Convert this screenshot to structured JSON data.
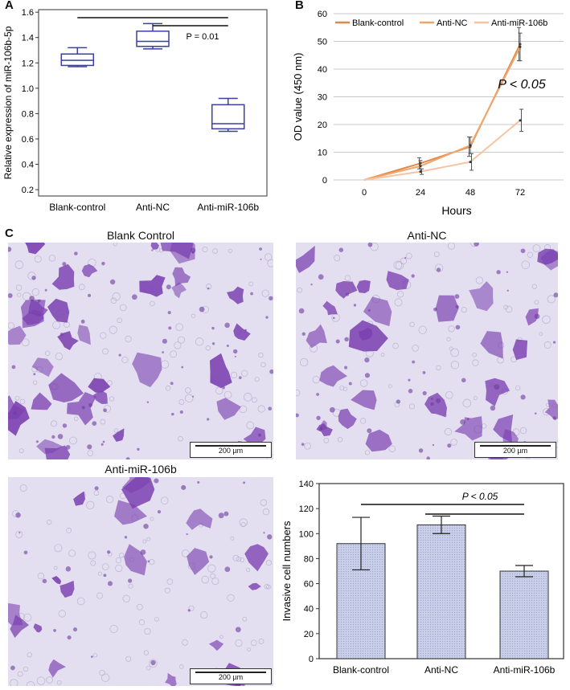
{
  "panel_letters": {
    "a": "A",
    "b": "B",
    "c": "C"
  },
  "photos": [
    {
      "title": "Blank Control",
      "scale": "200 µm"
    },
    {
      "title": "Anti-NC",
      "scale": "200 µm"
    },
    {
      "title": "Anti-miR-106b",
      "scale": "200 µm"
    }
  ],
  "colors": {
    "box": "#3a3fa8",
    "blank_line": "#e0894a",
    "anti_nc_line": "#f0a66b",
    "anti_mir_line": "#f7c3a3",
    "bar_fill": "#c9cfe8",
    "stain": "#7a3fb0"
  },
  "chart_data": [
    {
      "type": "box",
      "ylabel": "Relative expression of miR-106b-5p",
      "ylim": [
        0.15,
        1.62
      ],
      "yticks": [
        "0.2",
        "0.4",
        "0.6",
        "0.8",
        "1.0",
        "1.2",
        "1.4",
        "1.6"
      ],
      "categories": [
        "Blank-control",
        "Anti-NC",
        "Anti-miR-106b"
      ],
      "boxes": [
        {
          "min": 1.17,
          "q1": 1.18,
          "median": 1.22,
          "q3": 1.27,
          "max": 1.32
        },
        {
          "min": 1.31,
          "q1": 1.33,
          "median": 1.37,
          "q3": 1.45,
          "max": 1.51
        },
        {
          "min": 0.66,
          "q1": 0.68,
          "median": 0.72,
          "q3": 0.87,
          "max": 0.92
        }
      ],
      "annotation": "P = 0.01"
    },
    {
      "type": "line",
      "xlabel": "Hours",
      "ylabel": "OD value (450 nm)",
      "x": [
        0,
        24,
        48,
        72
      ],
      "ylim": [
        0,
        60
      ],
      "yticks": [
        "0",
        "10",
        "20",
        "30",
        "40",
        "50",
        "60"
      ],
      "series": [
        {
          "name": "Blank-control",
          "values": [
            0,
            6,
            12,
            49
          ],
          "errors": [
            0,
            2,
            3.5,
            6
          ]
        },
        {
          "name": "Anti-NC",
          "values": [
            0,
            5,
            12.5,
            48
          ],
          "errors": [
            0,
            2,
            3,
            5
          ]
        },
        {
          "name": "Anti-miR-106b",
          "values": [
            0,
            3,
            6.5,
            21.5
          ],
          "errors": [
            0,
            1,
            3,
            4
          ]
        }
      ],
      "annotation": "P < 0.05"
    },
    {
      "type": "bar",
      "ylabel": "Invasive cell numbers",
      "categories": [
        "Blank-control",
        "Anti-NC",
        "Anti-miR-106b"
      ],
      "values": [
        92,
        107,
        70
      ],
      "errors": [
        21,
        7,
        4.5
      ],
      "ylim": [
        0,
        140
      ],
      "yticks": [
        "0",
        "20",
        "40",
        "60",
        "80",
        "100",
        "120",
        "140"
      ],
      "annotation": "P < 0.05"
    }
  ]
}
